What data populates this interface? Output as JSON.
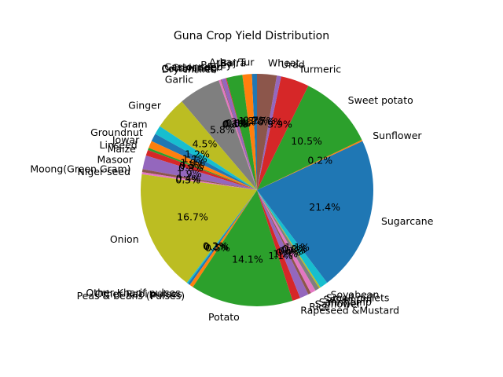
{
  "chart_data": {
    "type": "pie",
    "title": "Guna Crop Yield Distribution",
    "start_angle": 90,
    "counterclock": true,
    "label_distance": 1.1,
    "pct_distance": 0.6,
    "slices": [
      {
        "label": "Arhar/Tur",
        "value": 0.7,
        "pct_label": "0.7%",
        "color": "#1f77b4"
      },
      {
        "label": "Bajra",
        "value": 1.3,
        "pct_label": "1.3%",
        "color": "#ff7f0e"
      },
      {
        "label": "Barley",
        "value": 2.2,
        "pct_label": "2.2%",
        "color": "#2ca02c"
      },
      {
        "label": "Castor seed",
        "value": 0.1,
        "pct_label": "0.1%",
        "color": "#d62728"
      },
      {
        "label": "Coriander",
        "value": 0.6,
        "pct_label": "0.6%",
        "color": "#9467bd"
      },
      {
        "label": "Cotton(lint)",
        "value": 0.1,
        "pct_label": "0.1%",
        "color": "#8c564b"
      },
      {
        "label": "Dry chillies",
        "value": 0.3,
        "pct_label": "0.3%",
        "color": "#e377c2"
      },
      {
        "label": "Garlic",
        "value": 5.8,
        "pct_label": "5.8%",
        "color": "#7f7f7f"
      },
      {
        "label": "Ginger",
        "value": 4.5,
        "pct_label": "4.5%",
        "color": "#bcbd22"
      },
      {
        "label": "Gram",
        "value": 1.2,
        "pct_label": "1.2%",
        "color": "#17becf"
      },
      {
        "label": "Groundnut",
        "value": 1.1,
        "pct_label": "1.1%",
        "color": "#1f77b4"
      },
      {
        "label": "Jowar",
        "value": 1.0,
        "pct_label": "1.0%",
        "color": "#ff7f0e"
      },
      {
        "label": "Linseed",
        "value": 0.3,
        "pct_label": "0.3%",
        "color": "#2ca02c"
      },
      {
        "label": "Maize",
        "value": 0.8,
        "pct_label": "0.8%",
        "color": "#d62728"
      },
      {
        "label": "Masoor",
        "value": 1.9,
        "pct_label": "1.9%",
        "color": "#9467bd"
      },
      {
        "label": "Moong(Green Gram)",
        "value": 0.4,
        "pct_label": "0.4%",
        "color": "#8c564b"
      },
      {
        "label": "Niger seed",
        "value": 0.3,
        "pct_label": "0.3%",
        "color": "#e377c2"
      },
      {
        "label": "Onion",
        "value": 16.7,
        "pct_label": "16.7%",
        "color": "#bcbd22"
      },
      {
        "label": "Other Kharif pulses",
        "value": 0.2,
        "pct_label": "0.2%",
        "color": "#17becf"
      },
      {
        "label": "Other Rabi pulses",
        "value": 0.3,
        "pct_label": "0.3%",
        "color": "#1f77b4"
      },
      {
        "label": "Peas & beans (Pulses)",
        "value": 0.5,
        "pct_label": "0.5%",
        "color": "#ff7f0e"
      },
      {
        "label": "Potato",
        "value": 14.1,
        "pct_label": "14.1%",
        "color": "#2ca02c"
      },
      {
        "label": "Rapeseed &Mustard",
        "value": 1.1,
        "pct_label": "1.1%",
        "color": "#d62728"
      },
      {
        "label": "Rice",
        "value": 1.2,
        "pct_label": "1.2%",
        "color": "#9467bd"
      },
      {
        "label": "Safflower",
        "value": 0.4,
        "pct_label": "0.4%",
        "color": "#8c564b"
      },
      {
        "label": "Sannhamp",
        "value": 0.7,
        "pct_label": "0.7%",
        "color": "#e377c2"
      },
      {
        "label": "Sesamum",
        "value": 0.6,
        "pct_label": "0.6%",
        "color": "#7f7f7f"
      },
      {
        "label": "Small millets",
        "value": 0.2,
        "pct_label": "0.2%",
        "color": "#bcbd22"
      },
      {
        "label": "Soyabean",
        "value": 1.1,
        "pct_label": "1.1%",
        "color": "#17becf"
      },
      {
        "label": "Sugarcane",
        "value": 21.4,
        "pct_label": "21.4%",
        "color": "#1f77b4"
      },
      {
        "label": "Sunflower",
        "value": 0.2,
        "pct_label": "0.2%",
        "color": "#ff7f0e"
      },
      {
        "label": "Sweet potato",
        "value": 10.5,
        "pct_label": "10.5%",
        "color": "#2ca02c"
      },
      {
        "label": "Turmeric",
        "value": 3.9,
        "pct_label": "3.9%",
        "color": "#d62728"
      },
      {
        "label": "Urad",
        "value": 0.6,
        "pct_label": "0.6%",
        "color": "#9467bd"
      },
      {
        "label": "Wheat",
        "value": 2.7,
        "pct_label": "2.7%",
        "color": "#8c564b"
      }
    ]
  }
}
